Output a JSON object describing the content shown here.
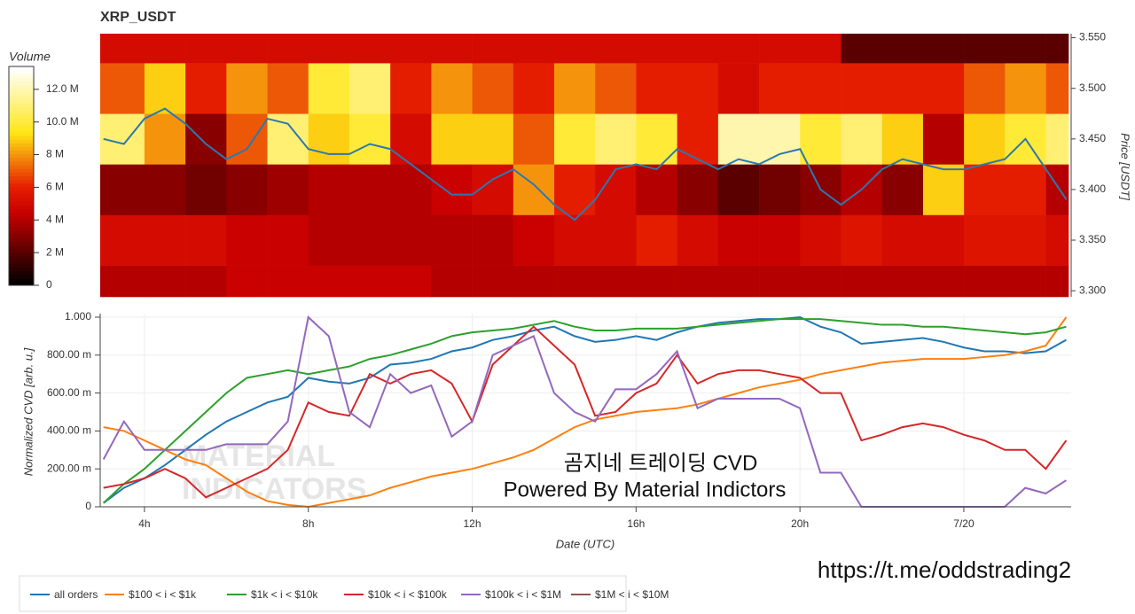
{
  "chart_data": [
    {
      "type": "heatmap",
      "title": "XRP_USDT",
      "ylabel": "Price [USDT]",
      "xlim": [
        2.92,
        26.55
      ],
      "ylim": [
        3.294,
        3.554
      ],
      "yticks": [
        {
          "value": 3.3,
          "label": "3.300"
        },
        {
          "value": 3.35,
          "label": "3.350"
        },
        {
          "value": 3.4,
          "label": "3.400"
        },
        {
          "value": 3.45,
          "label": "3.450"
        },
        {
          "value": 3.5,
          "label": "3.500"
        },
        {
          "value": 3.55,
          "label": "3.550"
        }
      ],
      "x_bins": [
        2.92,
        4,
        5,
        6,
        7,
        8,
        9,
        10,
        11,
        12,
        13,
        14,
        15,
        16,
        17,
        18,
        19,
        20,
        21,
        22,
        23,
        24,
        25,
        26,
        26.55
      ],
      "y_bins": [
        3.294,
        3.325,
        3.375,
        3.425,
        3.475,
        3.525,
        3.554
      ],
      "z": [
        [
          4,
          4,
          4,
          4.5,
          4.5,
          4.5,
          4.5,
          4.5,
          4,
          4,
          4,
          4,
          4,
          4,
          4,
          4,
          4,
          4,
          4,
          4,
          4,
          4,
          4,
          4
        ],
        [
          5,
          5,
          5,
          4.5,
          4.5,
          4,
          4,
          4,
          4,
          4,
          4.5,
          5,
          5,
          6,
          5,
          4.5,
          4.5,
          5,
          5.5,
          5,
          5,
          5.5,
          5.5,
          5
        ],
        [
          3,
          3,
          2.5,
          3,
          3.5,
          4,
          4,
          4,
          4.5,
          5,
          8,
          6,
          5,
          4,
          3,
          2,
          2.5,
          3,
          4,
          3,
          9,
          6,
          6,
          4
        ],
        [
          11,
          8,
          3,
          7,
          11,
          9,
          10,
          5,
          9,
          9,
          7,
          10,
          11,
          10,
          6,
          12,
          12,
          10,
          11,
          9,
          4,
          9,
          10,
          11
        ],
        [
          7,
          9,
          6,
          8,
          7,
          10,
          11,
          6,
          8,
          7,
          6,
          8,
          7,
          6,
          6,
          5,
          6,
          6,
          6,
          6,
          6,
          7,
          8,
          7
        ],
        [
          5,
          5,
          5,
          5,
          5,
          5,
          5,
          5,
          5,
          5,
          5,
          5,
          5,
          5,
          5,
          5,
          5,
          5,
          2,
          2,
          2,
          2,
          2,
          2
        ]
      ],
      "colorbar": {
        "title": "Volume",
        "lim": [
          0,
          13.4
        ],
        "ticks": [
          0,
          {
            "value": 2,
            "label": "2 M"
          },
          {
            "value": 4,
            "label": "4 M"
          },
          {
            "value": 6,
            "label": "6 M"
          },
          {
            "value": 8,
            "label": "8 M"
          },
          {
            "value": 10,
            "label": "10.0 M"
          },
          {
            "value": 12,
            "label": "12.0 M"
          }
        ]
      },
      "price": {
        "color": "#2b78b0",
        "x": [
          3,
          3.5,
          4,
          4.5,
          5,
          5.5,
          6,
          6.5,
          7,
          7.5,
          8,
          8.5,
          9,
          9.5,
          10,
          10.5,
          11,
          11.5,
          12,
          12.5,
          13,
          13.5,
          14,
          14.5,
          15,
          15.5,
          16,
          16.5,
          17,
          17.5,
          18,
          18.5,
          19,
          19.5,
          20,
          20.5,
          21,
          21.5,
          22,
          22.5,
          23,
          23.5,
          24,
          24.5,
          25,
          25.5,
          26,
          26.5
        ],
        "values": [
          3.45,
          3.445,
          3.47,
          3.48,
          3.465,
          3.445,
          3.43,
          3.44,
          3.47,
          3.465,
          3.44,
          3.435,
          3.435,
          3.445,
          3.44,
          3.425,
          3.41,
          3.395,
          3.395,
          3.41,
          3.42,
          3.405,
          3.385,
          3.37,
          3.39,
          3.42,
          3.425,
          3.42,
          3.44,
          3.43,
          3.42,
          3.43,
          3.425,
          3.435,
          3.44,
          3.4,
          3.385,
          3.4,
          3.42,
          3.43,
          3.425,
          3.42,
          3.42,
          3.425,
          3.43,
          3.45,
          3.42,
          3.39
        ]
      }
    },
    {
      "type": "line",
      "xlabel": "Date (UTC)",
      "ylabel": "Normalized CVD [arb. u.]",
      "grid": true,
      "legend": "bottom",
      "xlim": [
        2.92,
        26.62
      ],
      "ylim": [
        0,
        1
      ],
      "xticks": [
        {
          "value": 4,
          "label": "4h"
        },
        {
          "value": 8,
          "label": "8h"
        },
        {
          "value": 12,
          "label": "12h"
        },
        {
          "value": 16,
          "label": "16h"
        },
        {
          "value": 20,
          "label": "20h"
        },
        {
          "value": 24,
          "label": "7/20"
        }
      ],
      "yticks": [
        0,
        {
          "value": 0.2,
          "label": "200.00 m"
        },
        {
          "value": 0.4,
          "label": "400.00 m"
        },
        {
          "value": 0.6,
          "label": "600.00 m"
        },
        {
          "value": 0.8,
          "label": "800.00 m"
        },
        {
          "value": 1,
          "label": "1.000"
        }
      ],
      "x": [
        3,
        3.5,
        4,
        4.5,
        5,
        5.5,
        6,
        6.5,
        7,
        7.5,
        8,
        8.5,
        9,
        9.5,
        10,
        10.5,
        11,
        11.5,
        12,
        12.5,
        13,
        13.5,
        14,
        14.5,
        15,
        15.5,
        16,
        16.5,
        17,
        17.5,
        18,
        18.5,
        19,
        19.5,
        20,
        20.5,
        21,
        21.5,
        22,
        22.5,
        23,
        23.5,
        24,
        24.5,
        25,
        25.5,
        26,
        26.5
      ],
      "series": [
        {
          "name": "all orders",
          "color": "#1f77b4",
          "values": [
            0.02,
            0.1,
            0.15,
            0.22,
            0.3,
            0.38,
            0.45,
            0.5,
            0.55,
            0.58,
            0.68,
            0.66,
            0.65,
            0.68,
            0.75,
            0.76,
            0.78,
            0.82,
            0.84,
            0.88,
            0.9,
            0.93,
            0.95,
            0.9,
            0.87,
            0.88,
            0.9,
            0.88,
            0.92,
            0.95,
            0.97,
            0.98,
            0.99,
            0.99,
            1.0,
            0.95,
            0.92,
            0.86,
            0.87,
            0.88,
            0.89,
            0.87,
            0.84,
            0.82,
            0.82,
            0.81,
            0.82,
            0.88
          ]
        },
        {
          "name": "$100 < i < $1k",
          "color": "#ff7f0e",
          "values": [
            0.42,
            0.4,
            0.35,
            0.3,
            0.25,
            0.22,
            0.15,
            0.08,
            0.03,
            0.01,
            0.0,
            0.02,
            0.04,
            0.06,
            0.1,
            0.13,
            0.16,
            0.18,
            0.2,
            0.23,
            0.26,
            0.3,
            0.36,
            0.42,
            0.46,
            0.48,
            0.5,
            0.51,
            0.52,
            0.54,
            0.57,
            0.6,
            0.63,
            0.65,
            0.67,
            0.7,
            0.72,
            0.74,
            0.76,
            0.77,
            0.78,
            0.78,
            0.78,
            0.79,
            0.8,
            0.82,
            0.85,
            1.0
          ]
        },
        {
          "name": "$1k < i < $10k",
          "color": "#2ca02c",
          "values": [
            0.02,
            0.12,
            0.2,
            0.3,
            0.4,
            0.5,
            0.6,
            0.68,
            0.7,
            0.72,
            0.7,
            0.72,
            0.74,
            0.78,
            0.8,
            0.83,
            0.86,
            0.9,
            0.92,
            0.93,
            0.94,
            0.96,
            0.98,
            0.95,
            0.93,
            0.93,
            0.94,
            0.94,
            0.94,
            0.95,
            0.96,
            0.97,
            0.98,
            0.99,
            0.99,
            0.99,
            0.98,
            0.97,
            0.96,
            0.96,
            0.95,
            0.95,
            0.94,
            0.93,
            0.92,
            0.91,
            0.92,
            0.95
          ]
        },
        {
          "name": "$10k < i < $100k",
          "color": "#d62728",
          "values": [
            0.1,
            0.12,
            0.15,
            0.2,
            0.15,
            0.05,
            0.1,
            0.15,
            0.2,
            0.3,
            0.55,
            0.5,
            0.48,
            0.7,
            0.65,
            0.7,
            0.72,
            0.65,
            0.45,
            0.75,
            0.85,
            0.95,
            0.85,
            0.75,
            0.48,
            0.5,
            0.6,
            0.65,
            0.8,
            0.65,
            0.7,
            0.72,
            0.72,
            0.7,
            0.68,
            0.6,
            0.6,
            0.35,
            0.38,
            0.42,
            0.44,
            0.42,
            0.38,
            0.35,
            0.3,
            0.3,
            0.2,
            0.35
          ]
        },
        {
          "name": "$100k < i < $1M",
          "color": "#9467bd",
          "values": [
            0.25,
            0.45,
            0.3,
            0.3,
            0.3,
            0.3,
            0.33,
            0.33,
            0.33,
            0.45,
            1.0,
            0.9,
            0.5,
            0.42,
            0.7,
            0.6,
            0.64,
            0.37,
            0.45,
            0.8,
            0.85,
            0.9,
            0.6,
            0.5,
            0.45,
            0.62,
            0.62,
            0.7,
            0.82,
            0.52,
            0.57,
            0.57,
            0.57,
            0.57,
            0.52,
            0.18,
            0.18,
            0.0,
            0.0,
            0.0,
            0.0,
            0.0,
            0.0,
            0.0,
            0.0,
            0.1,
            0.07,
            0.14
          ]
        },
        {
          "name": "$1M < i < $10M",
          "color": "#8c564b",
          "values": [
            null,
            null,
            null,
            null,
            null,
            null,
            null,
            null,
            null,
            null,
            null,
            null,
            null,
            null,
            null,
            null,
            null,
            null,
            null,
            null,
            null,
            null,
            null,
            null,
            null,
            null,
            null,
            null,
            null,
            null,
            null,
            null,
            null,
            null,
            null,
            null,
            null,
            null,
            null,
            null,
            null,
            null,
            null,
            null,
            null,
            null,
            null,
            null
          ]
        }
      ],
      "annotations": [
        "곰지네 트레이딩 CVD",
        "Powered By Material Indictors"
      ],
      "watermark": [
        "MATERIAL",
        "INDICATORS"
      ]
    }
  ],
  "link": "https://t.me/oddstrading2"
}
